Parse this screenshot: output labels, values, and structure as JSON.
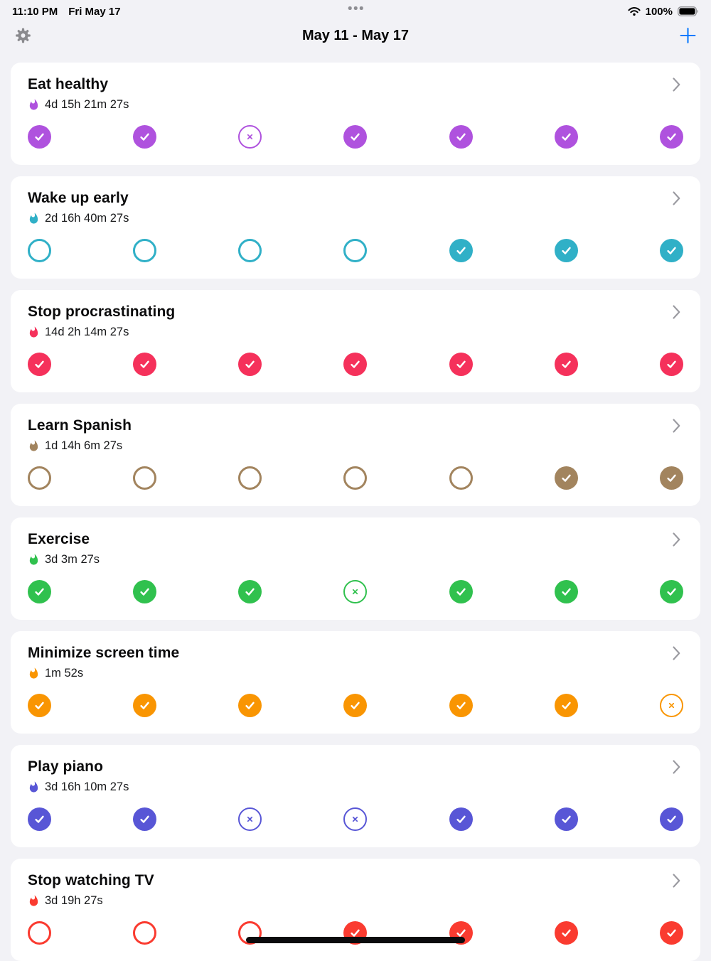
{
  "status_bar": {
    "time": "11:10 PM",
    "date": "Fri May 17",
    "battery": "100%"
  },
  "nav": {
    "title": "May 11 - May 17",
    "accent_color": "#0A7AFF"
  },
  "icons": {
    "settings": "gear-icon",
    "add": "plus-icon",
    "detail": "chevron-right-icon",
    "streak": "flame-icon",
    "done": "check-icon",
    "missed": "x-circle-icon",
    "pending": "empty-circle-icon"
  },
  "habits": [
    {
      "name": "Eat healthy",
      "streak": "4d 15h 21m 27s",
      "color": "#AF52DE",
      "days": [
        "check",
        "check",
        "miss",
        "check",
        "check",
        "check",
        "check"
      ]
    },
    {
      "name": "Wake up early",
      "streak": "2d 16h 40m 27s",
      "color": "#30B0C7",
      "days": [
        "empty",
        "empty",
        "empty",
        "empty",
        "check",
        "check",
        "check"
      ]
    },
    {
      "name": "Stop procrastinating",
      "streak": "14d 2h 14m 27s",
      "color": "#F5315B",
      "days": [
        "check",
        "check",
        "check",
        "check",
        "check",
        "check",
        "check"
      ]
    },
    {
      "name": "Learn Spanish",
      "streak": "1d 14h 6m 27s",
      "color": "#A2845E",
      "days": [
        "empty",
        "empty",
        "empty",
        "empty",
        "empty",
        "check",
        "check"
      ]
    },
    {
      "name": "Exercise",
      "streak": "3d 3m 27s",
      "color": "#30C14E",
      "days": [
        "check",
        "check",
        "check",
        "miss",
        "check",
        "check",
        "check"
      ]
    },
    {
      "name": "Minimize screen time",
      "streak": "1m 52s",
      "color": "#F99502",
      "days": [
        "check",
        "check",
        "check",
        "check",
        "check",
        "check",
        "miss"
      ]
    },
    {
      "name": "Play piano",
      "streak": "3d 16h 10m 27s",
      "color": "#5856D6",
      "days": [
        "check",
        "check",
        "miss",
        "miss",
        "check",
        "check",
        "check"
      ]
    },
    {
      "name": "Stop watching TV",
      "streak": "3d 19h 27s",
      "color": "#FA3B30",
      "days": [
        "empty",
        "empty",
        "empty",
        "check",
        "check",
        "check",
        "check"
      ]
    }
  ]
}
